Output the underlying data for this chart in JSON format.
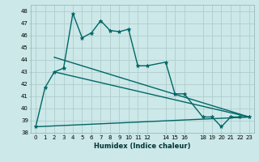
{
  "xlabel": "Humidex (Indice chaleur)",
  "background_color": "#cce8e8",
  "grid_color": "#b0cccc",
  "line_color": "#006666",
  "xlim": [
    -0.5,
    23.5
  ],
  "ylim": [
    38.0,
    48.5
  ],
  "yticks": [
    38,
    39,
    40,
    41,
    42,
    43,
    44,
    45,
    46,
    47,
    48
  ],
  "xticks": [
    0,
    1,
    2,
    3,
    4,
    5,
    6,
    7,
    8,
    9,
    10,
    11,
    12,
    14,
    15,
    16,
    18,
    19,
    20,
    21,
    22,
    23
  ],
  "xtick_labels": [
    "0",
    "1",
    "2",
    "3",
    "4",
    "5",
    "6",
    "7",
    "8",
    "9",
    "10",
    "11",
    "12",
    "14",
    "15",
    "16",
    "18",
    "19",
    "20",
    "21",
    "22",
    "23"
  ],
  "series1_x": [
    0,
    1,
    2,
    3,
    4,
    5,
    6,
    7,
    8,
    9,
    10,
    11,
    12,
    14,
    15,
    16,
    18,
    19,
    20,
    21,
    22,
    23
  ],
  "series1_y": [
    38.5,
    41.7,
    43.0,
    43.3,
    47.8,
    45.8,
    46.2,
    47.2,
    46.4,
    46.3,
    46.5,
    43.5,
    43.5,
    43.8,
    41.2,
    41.2,
    39.3,
    39.3,
    38.5,
    39.3,
    39.3,
    39.3
  ],
  "trend1_x": [
    0,
    23
  ],
  "trend1_y": [
    38.5,
    39.3
  ],
  "trend2_x": [
    2,
    23
  ],
  "trend2_y": [
    43.0,
    39.3
  ],
  "trend3_x": [
    2,
    23
  ],
  "trend3_y": [
    44.2,
    39.3
  ],
  "marker": "*",
  "marker_size": 3.5,
  "line_width": 1.0
}
